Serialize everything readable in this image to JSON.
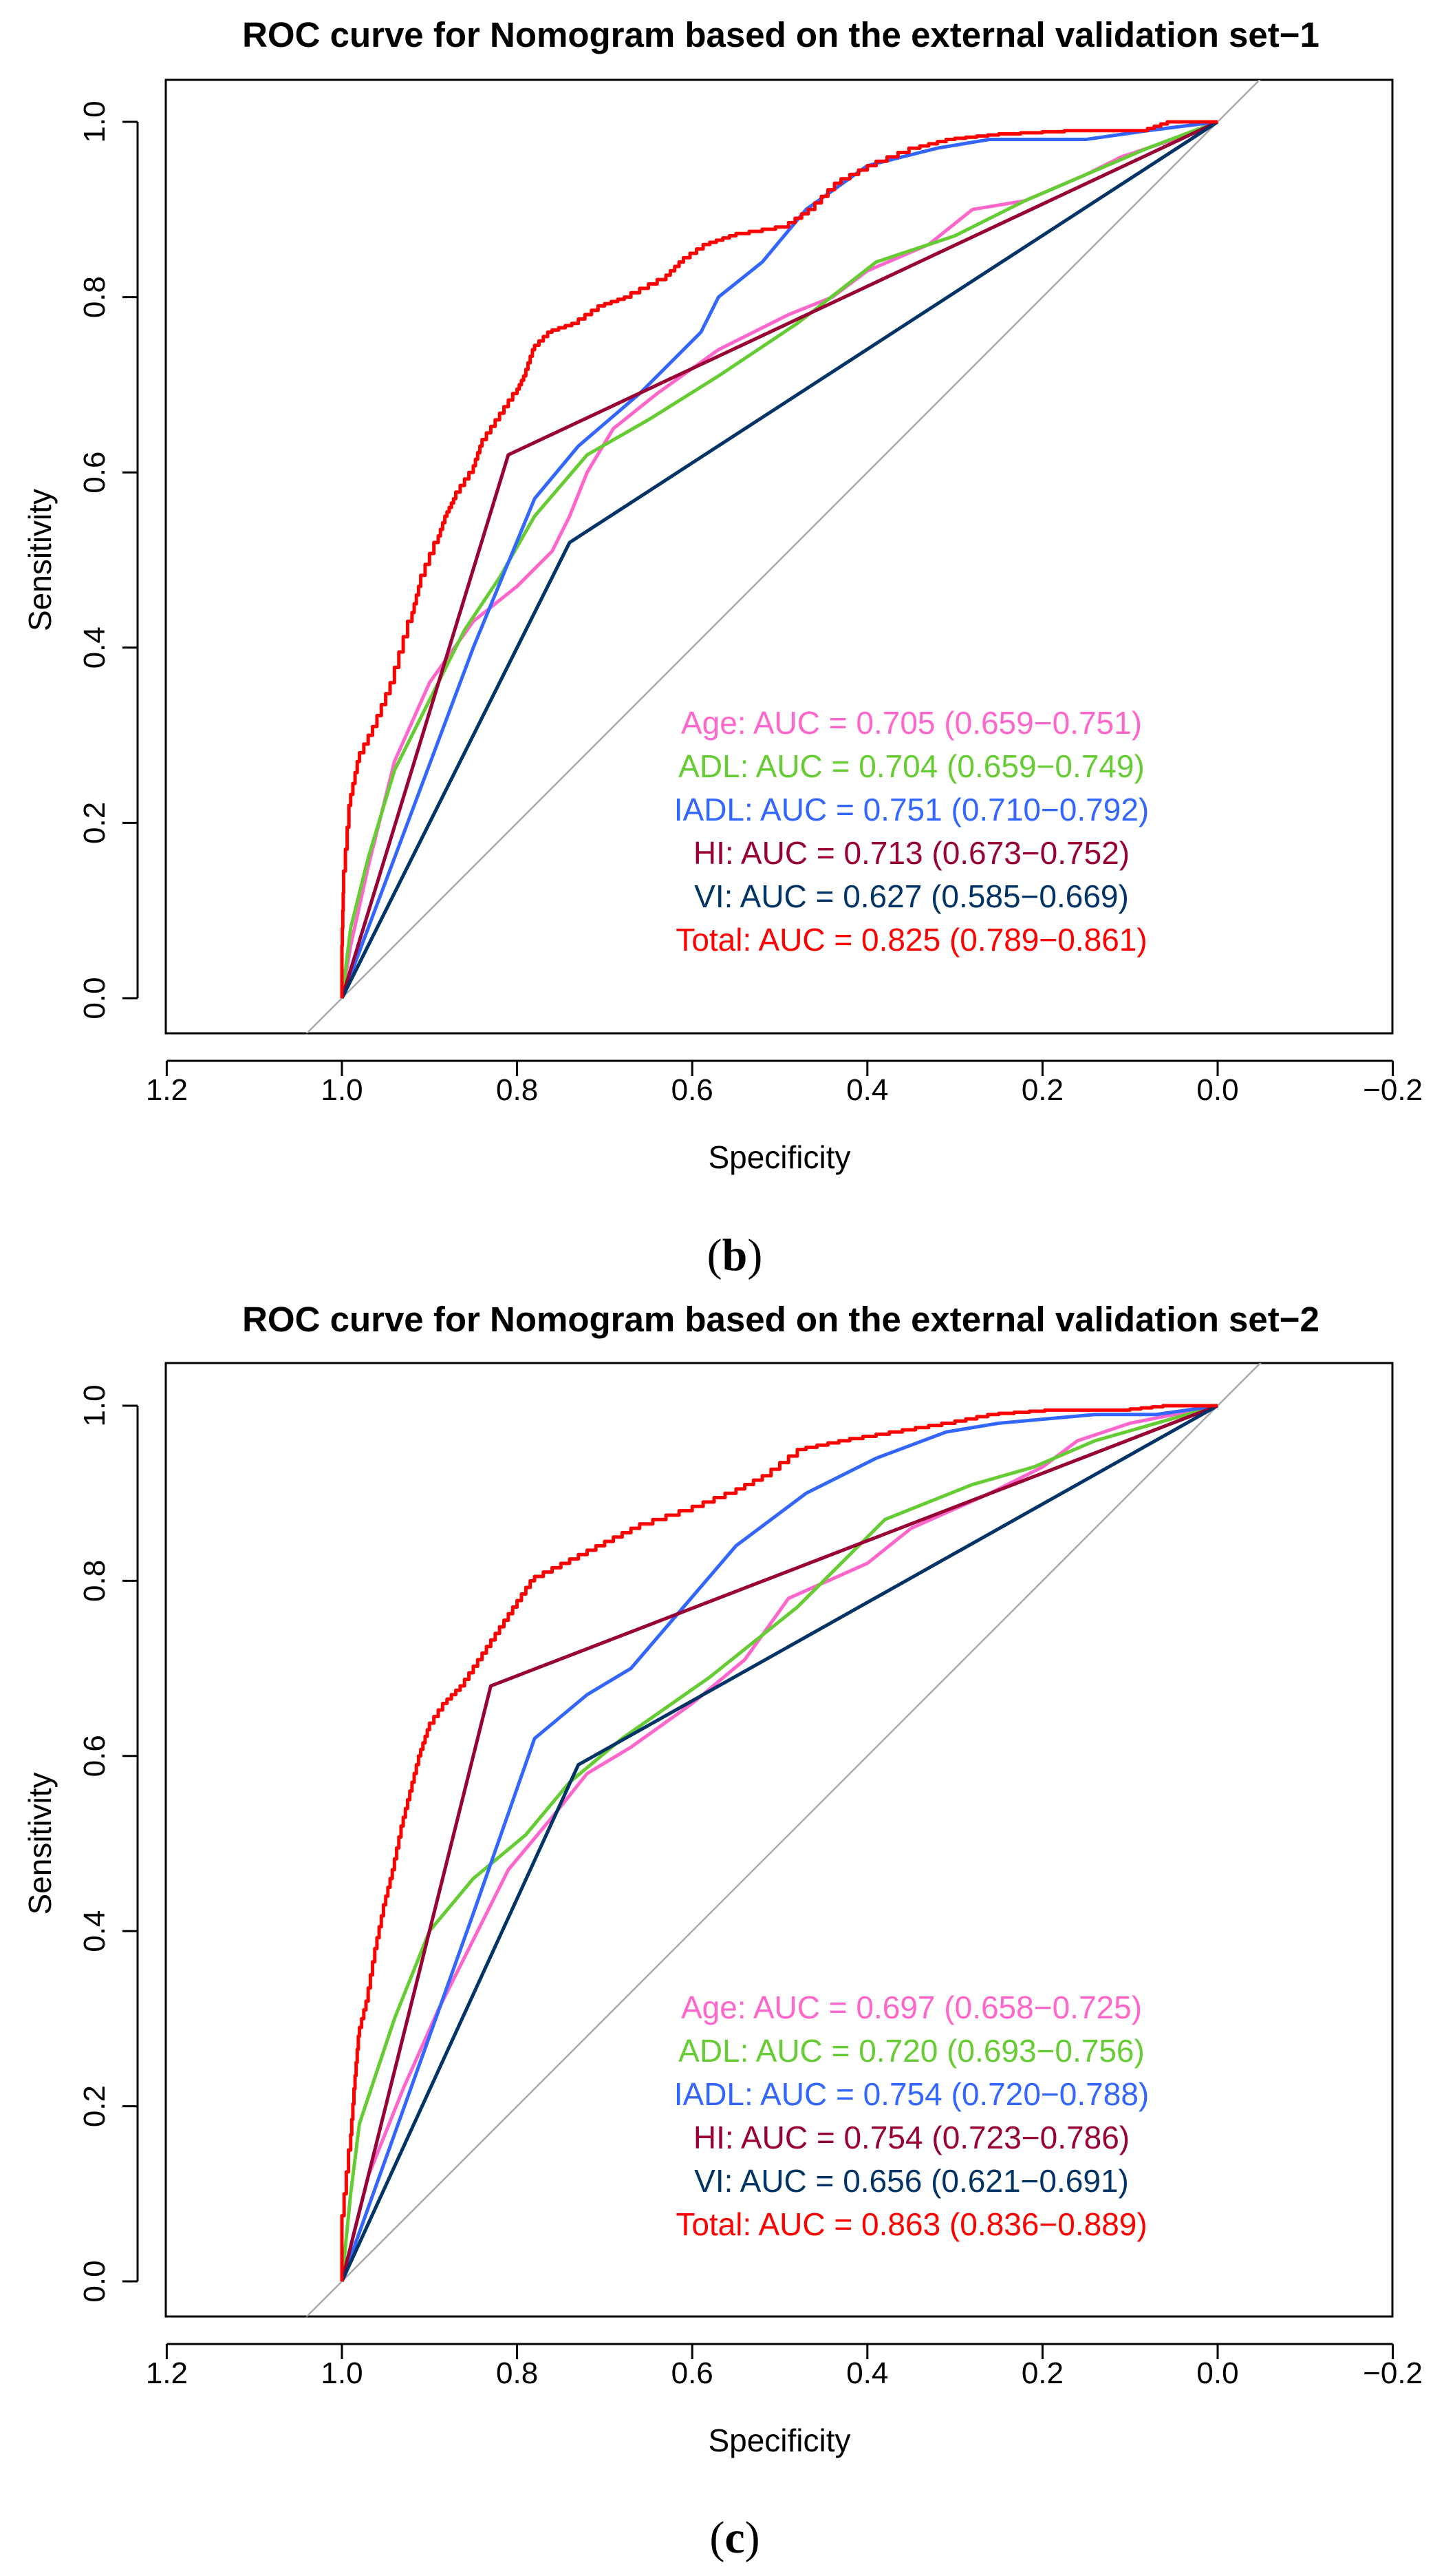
{
  "chart_data": [
    {
      "type": "line",
      "panel_label": "b",
      "title": "ROC curve for Nomogram based on the external validation set−1",
      "xlabel": "Specificity",
      "ylabel": "Sensitivity",
      "xlim": [
        1.2,
        -0.2
      ],
      "ylim": [
        0.0,
        1.0
      ],
      "x_ticks": [
        "1.2",
        "1.0",
        "0.8",
        "0.6",
        "0.4",
        "0.2",
        "0.0",
        "−0.2"
      ],
      "y_ticks": [
        "0.0",
        "0.2",
        "0.4",
        "0.6",
        "0.8",
        "1.0"
      ],
      "legend_position": "bottom-right",
      "legend": [
        {
          "prefix": "Age: AUC = ",
          "auc": "0.705",
          "ci": "(0.659−0.751)",
          "color": "#ff66cc"
        },
        {
          "prefix": "ADL: AUC = ",
          "auc": "0.704",
          "ci": "(0.659−0.749)",
          "color": "#66cc33"
        },
        {
          "prefix": "IADL: AUC = ",
          "auc": "0.751",
          "ci": "(0.710−0.792)",
          "color": "#3366ff"
        },
        {
          "prefix": "HI: AUC = ",
          "auc": "0.713",
          "ci": "(0.673−0.752)",
          "color": "#990033"
        },
        {
          "prefix": "VI: AUC = ",
          "auc": "0.627",
          "ci": "(0.585−0.669)",
          "color": "#003366"
        },
        {
          "prefix": "Total: AUC = ",
          "auc": "0.825",
          "ci": "(0.789−0.861)",
          "color": "#ff0000"
        }
      ],
      "reference_line_color": "#aaaaaa",
      "series": [
        {
          "name": "Age",
          "color": "#ff66cc",
          "step": false,
          "points": [
            [
              1.0,
              0.0
            ],
            [
              0.99,
              0.06
            ],
            [
              0.97,
              0.15
            ],
            [
              0.94,
              0.27
            ],
            [
              0.9,
              0.36
            ],
            [
              0.85,
              0.43
            ],
            [
              0.8,
              0.47
            ],
            [
              0.76,
              0.51
            ],
            [
              0.74,
              0.55
            ],
            [
              0.72,
              0.6
            ],
            [
              0.69,
              0.65
            ],
            [
              0.64,
              0.69
            ],
            [
              0.57,
              0.74
            ],
            [
              0.49,
              0.78
            ],
            [
              0.44,
              0.8
            ],
            [
              0.4,
              0.83
            ],
            [
              0.33,
              0.86
            ],
            [
              0.28,
              0.9
            ],
            [
              0.22,
              0.91
            ],
            [
              0.15,
              0.94
            ],
            [
              0.11,
              0.96
            ],
            [
              0.05,
              0.98
            ],
            [
              0.0,
              1.0
            ]
          ]
        },
        {
          "name": "ADL",
          "color": "#66cc33",
          "step": false,
          "points": [
            [
              1.0,
              0.0
            ],
            [
              0.99,
              0.08
            ],
            [
              0.97,
              0.16
            ],
            [
              0.94,
              0.26
            ],
            [
              0.9,
              0.34
            ],
            [
              0.86,
              0.42
            ],
            [
              0.82,
              0.48
            ],
            [
              0.78,
              0.55
            ],
            [
              0.72,
              0.62
            ],
            [
              0.65,
              0.66
            ],
            [
              0.57,
              0.71
            ],
            [
              0.48,
              0.77
            ],
            [
              0.39,
              0.84
            ],
            [
              0.3,
              0.87
            ],
            [
              0.22,
              0.91
            ],
            [
              0.15,
              0.94
            ],
            [
              0.08,
              0.97
            ],
            [
              0.0,
              1.0
            ]
          ]
        },
        {
          "name": "IADL",
          "color": "#3366ff",
          "step": false,
          "points": [
            [
              1.0,
              0.0
            ],
            [
              0.85,
              0.4
            ],
            [
              0.78,
              0.57
            ],
            [
              0.73,
              0.63
            ],
            [
              0.66,
              0.69
            ],
            [
              0.59,
              0.76
            ],
            [
              0.57,
              0.8
            ],
            [
              0.52,
              0.84
            ],
            [
              0.47,
              0.9
            ],
            [
              0.4,
              0.95
            ],
            [
              0.32,
              0.97
            ],
            [
              0.26,
              0.98
            ],
            [
              0.15,
              0.98
            ],
            [
              0.08,
              0.99
            ],
            [
              0.0,
              1.0
            ]
          ]
        },
        {
          "name": "HI",
          "color": "#990033",
          "step": false,
          "points": [
            [
              1.0,
              0.0
            ],
            [
              0.81,
              0.62
            ],
            [
              0.0,
              1.0
            ]
          ]
        },
        {
          "name": "VI",
          "color": "#003366",
          "step": false,
          "points": [
            [
              1.0,
              0.0
            ],
            [
              0.74,
              0.52
            ],
            [
              0.0,
              1.0
            ]
          ]
        },
        {
          "name": "Total",
          "color": "#ff0000",
          "step": true,
          "points": [
            [
              1.0,
              0.0
            ],
            [
              1.0,
              0.04
            ],
            [
              0.998,
              0.12
            ],
            [
              0.99,
              0.22
            ],
            [
              0.98,
              0.27
            ],
            [
              0.96,
              0.31
            ],
            [
              0.94,
              0.36
            ],
            [
              0.92,
              0.43
            ],
            [
              0.91,
              0.47
            ],
            [
              0.89,
              0.52
            ],
            [
              0.88,
              0.55
            ],
            [
              0.87,
              0.57
            ],
            [
              0.85,
              0.6
            ],
            [
              0.84,
              0.63
            ],
            [
              0.82,
              0.66
            ],
            [
              0.8,
              0.69
            ],
            [
              0.79,
              0.71
            ],
            [
              0.78,
              0.74
            ],
            [
              0.76,
              0.76
            ],
            [
              0.73,
              0.77
            ],
            [
              0.7,
              0.79
            ],
            [
              0.67,
              0.8
            ],
            [
              0.63,
              0.82
            ],
            [
              0.61,
              0.84
            ],
            [
              0.58,
              0.86
            ],
            [
              0.55,
              0.87
            ],
            [
              0.49,
              0.88
            ],
            [
              0.46,
              0.9
            ],
            [
              0.43,
              0.93
            ],
            [
              0.39,
              0.95
            ],
            [
              0.34,
              0.97
            ],
            [
              0.3,
              0.98
            ],
            [
              0.25,
              0.985
            ],
            [
              0.15,
              0.99
            ],
            [
              0.08,
              0.99
            ],
            [
              0.05,
              1.0
            ],
            [
              0.0,
              1.0
            ]
          ]
        }
      ]
    },
    {
      "type": "line",
      "panel_label": "c",
      "title": "ROC curve for Nomogram based on the external validation set−2",
      "xlabel": "Specificity",
      "ylabel": "Sensitivity",
      "xlim": [
        1.2,
        -0.2
      ],
      "ylim": [
        0.0,
        1.0
      ],
      "x_ticks": [
        "1.2",
        "1.0",
        "0.8",
        "0.6",
        "0.4",
        "0.2",
        "0.0",
        "−0.2"
      ],
      "y_ticks": [
        "0.0",
        "0.2",
        "0.4",
        "0.6",
        "0.8",
        "1.0"
      ],
      "legend_position": "bottom-right",
      "legend": [
        {
          "prefix": "Age: AUC = ",
          "auc": "0.697",
          "ci": "(0.658−0.725)",
          "color": "#ff66cc"
        },
        {
          "prefix": "ADL: AUC = ",
          "auc": "0.720",
          "ci": "(0.693−0.756)",
          "color": "#66cc33"
        },
        {
          "prefix": "IADL: AUC = ",
          "auc": "0.754",
          "ci": "(0.720−0.788)",
          "color": "#3366ff"
        },
        {
          "prefix": "HI: AUC = ",
          "auc": "0.754",
          "ci": "(0.723−0.786)",
          "color": "#990033"
        },
        {
          "prefix": "VI: AUC = ",
          "auc": "0.656",
          "ci": "(0.621−0.691)",
          "color": "#003366"
        },
        {
          "prefix": "Total: AUC = ",
          "auc": "0.863",
          "ci": "(0.836−0.889)",
          "color": "#ff0000"
        }
      ],
      "reference_line_color": "#aaaaaa",
      "series": [
        {
          "name": "Age",
          "color": "#ff66cc",
          "step": false,
          "points": [
            [
              1.0,
              0.0
            ],
            [
              0.97,
              0.12
            ],
            [
              0.93,
              0.22
            ],
            [
              0.89,
              0.31
            ],
            [
              0.85,
              0.39
            ],
            [
              0.81,
              0.47
            ],
            [
              0.76,
              0.53
            ],
            [
              0.72,
              0.58
            ],
            [
              0.67,
              0.61
            ],
            [
              0.6,
              0.66
            ],
            [
              0.54,
              0.71
            ],
            [
              0.49,
              0.78
            ],
            [
              0.4,
              0.82
            ],
            [
              0.35,
              0.86
            ],
            [
              0.26,
              0.9
            ],
            [
              0.2,
              0.93
            ],
            [
              0.16,
              0.96
            ],
            [
              0.1,
              0.98
            ],
            [
              0.0,
              1.0
            ]
          ]
        },
        {
          "name": "ADL",
          "color": "#66cc33",
          "step": false,
          "points": [
            [
              1.0,
              0.0
            ],
            [
              0.99,
              0.1
            ],
            [
              0.98,
              0.18
            ],
            [
              0.94,
              0.3
            ],
            [
              0.9,
              0.4
            ],
            [
              0.85,
              0.46
            ],
            [
              0.79,
              0.51
            ],
            [
              0.74,
              0.57
            ],
            [
              0.68,
              0.62
            ],
            [
              0.58,
              0.69
            ],
            [
              0.48,
              0.77
            ],
            [
              0.38,
              0.87
            ],
            [
              0.28,
              0.91
            ],
            [
              0.21,
              0.93
            ],
            [
              0.14,
              0.96
            ],
            [
              0.07,
              0.98
            ],
            [
              0.0,
              1.0
            ]
          ]
        },
        {
          "name": "IADL",
          "color": "#3366ff",
          "step": false,
          "points": [
            [
              1.0,
              0.0
            ],
            [
              0.9,
              0.28
            ],
            [
              0.85,
              0.42
            ],
            [
              0.78,
              0.62
            ],
            [
              0.72,
              0.67
            ],
            [
              0.67,
              0.7
            ],
            [
              0.61,
              0.77
            ],
            [
              0.55,
              0.84
            ],
            [
              0.47,
              0.9
            ],
            [
              0.39,
              0.94
            ],
            [
              0.31,
              0.97
            ],
            [
              0.25,
              0.98
            ],
            [
              0.14,
              0.99
            ],
            [
              0.07,
              0.99
            ],
            [
              0.0,
              1.0
            ]
          ]
        },
        {
          "name": "HI",
          "color": "#990033",
          "step": false,
          "points": [
            [
              1.0,
              0.0
            ],
            [
              0.83,
              0.68
            ],
            [
              0.0,
              1.0
            ]
          ]
        },
        {
          "name": "VI",
          "color": "#003366",
          "step": false,
          "points": [
            [
              1.0,
              0.0
            ],
            [
              0.73,
              0.59
            ],
            [
              0.0,
              1.0
            ]
          ]
        },
        {
          "name": "Total",
          "color": "#ff0000",
          "step": true,
          "points": [
            [
              1.0,
              0.0
            ],
            [
              1.0,
              0.05
            ],
            [
              0.99,
              0.15
            ],
            [
              0.985,
              0.22
            ],
            [
              0.98,
              0.28
            ],
            [
              0.97,
              0.32
            ],
            [
              0.96,
              0.38
            ],
            [
              0.95,
              0.43
            ],
            [
              0.94,
              0.47
            ],
            [
              0.93,
              0.52
            ],
            [
              0.92,
              0.56
            ],
            [
              0.91,
              0.6
            ],
            [
              0.9,
              0.63
            ],
            [
              0.88,
              0.66
            ],
            [
              0.86,
              0.68
            ],
            [
              0.84,
              0.71
            ],
            [
              0.82,
              0.74
            ],
            [
              0.8,
              0.77
            ],
            [
              0.78,
              0.8
            ],
            [
              0.74,
              0.82
            ],
            [
              0.7,
              0.84
            ],
            [
              0.66,
              0.86
            ],
            [
              0.6,
              0.88
            ],
            [
              0.55,
              0.9
            ],
            [
              0.51,
              0.92
            ],
            [
              0.47,
              0.95
            ],
            [
              0.42,
              0.96
            ],
            [
              0.36,
              0.97
            ],
            [
              0.3,
              0.98
            ],
            [
              0.25,
              0.99
            ],
            [
              0.18,
              0.995
            ],
            [
              0.1,
              0.995
            ],
            [
              0.05,
              1.0
            ],
            [
              0.0,
              1.0
            ]
          ]
        }
      ]
    }
  ]
}
